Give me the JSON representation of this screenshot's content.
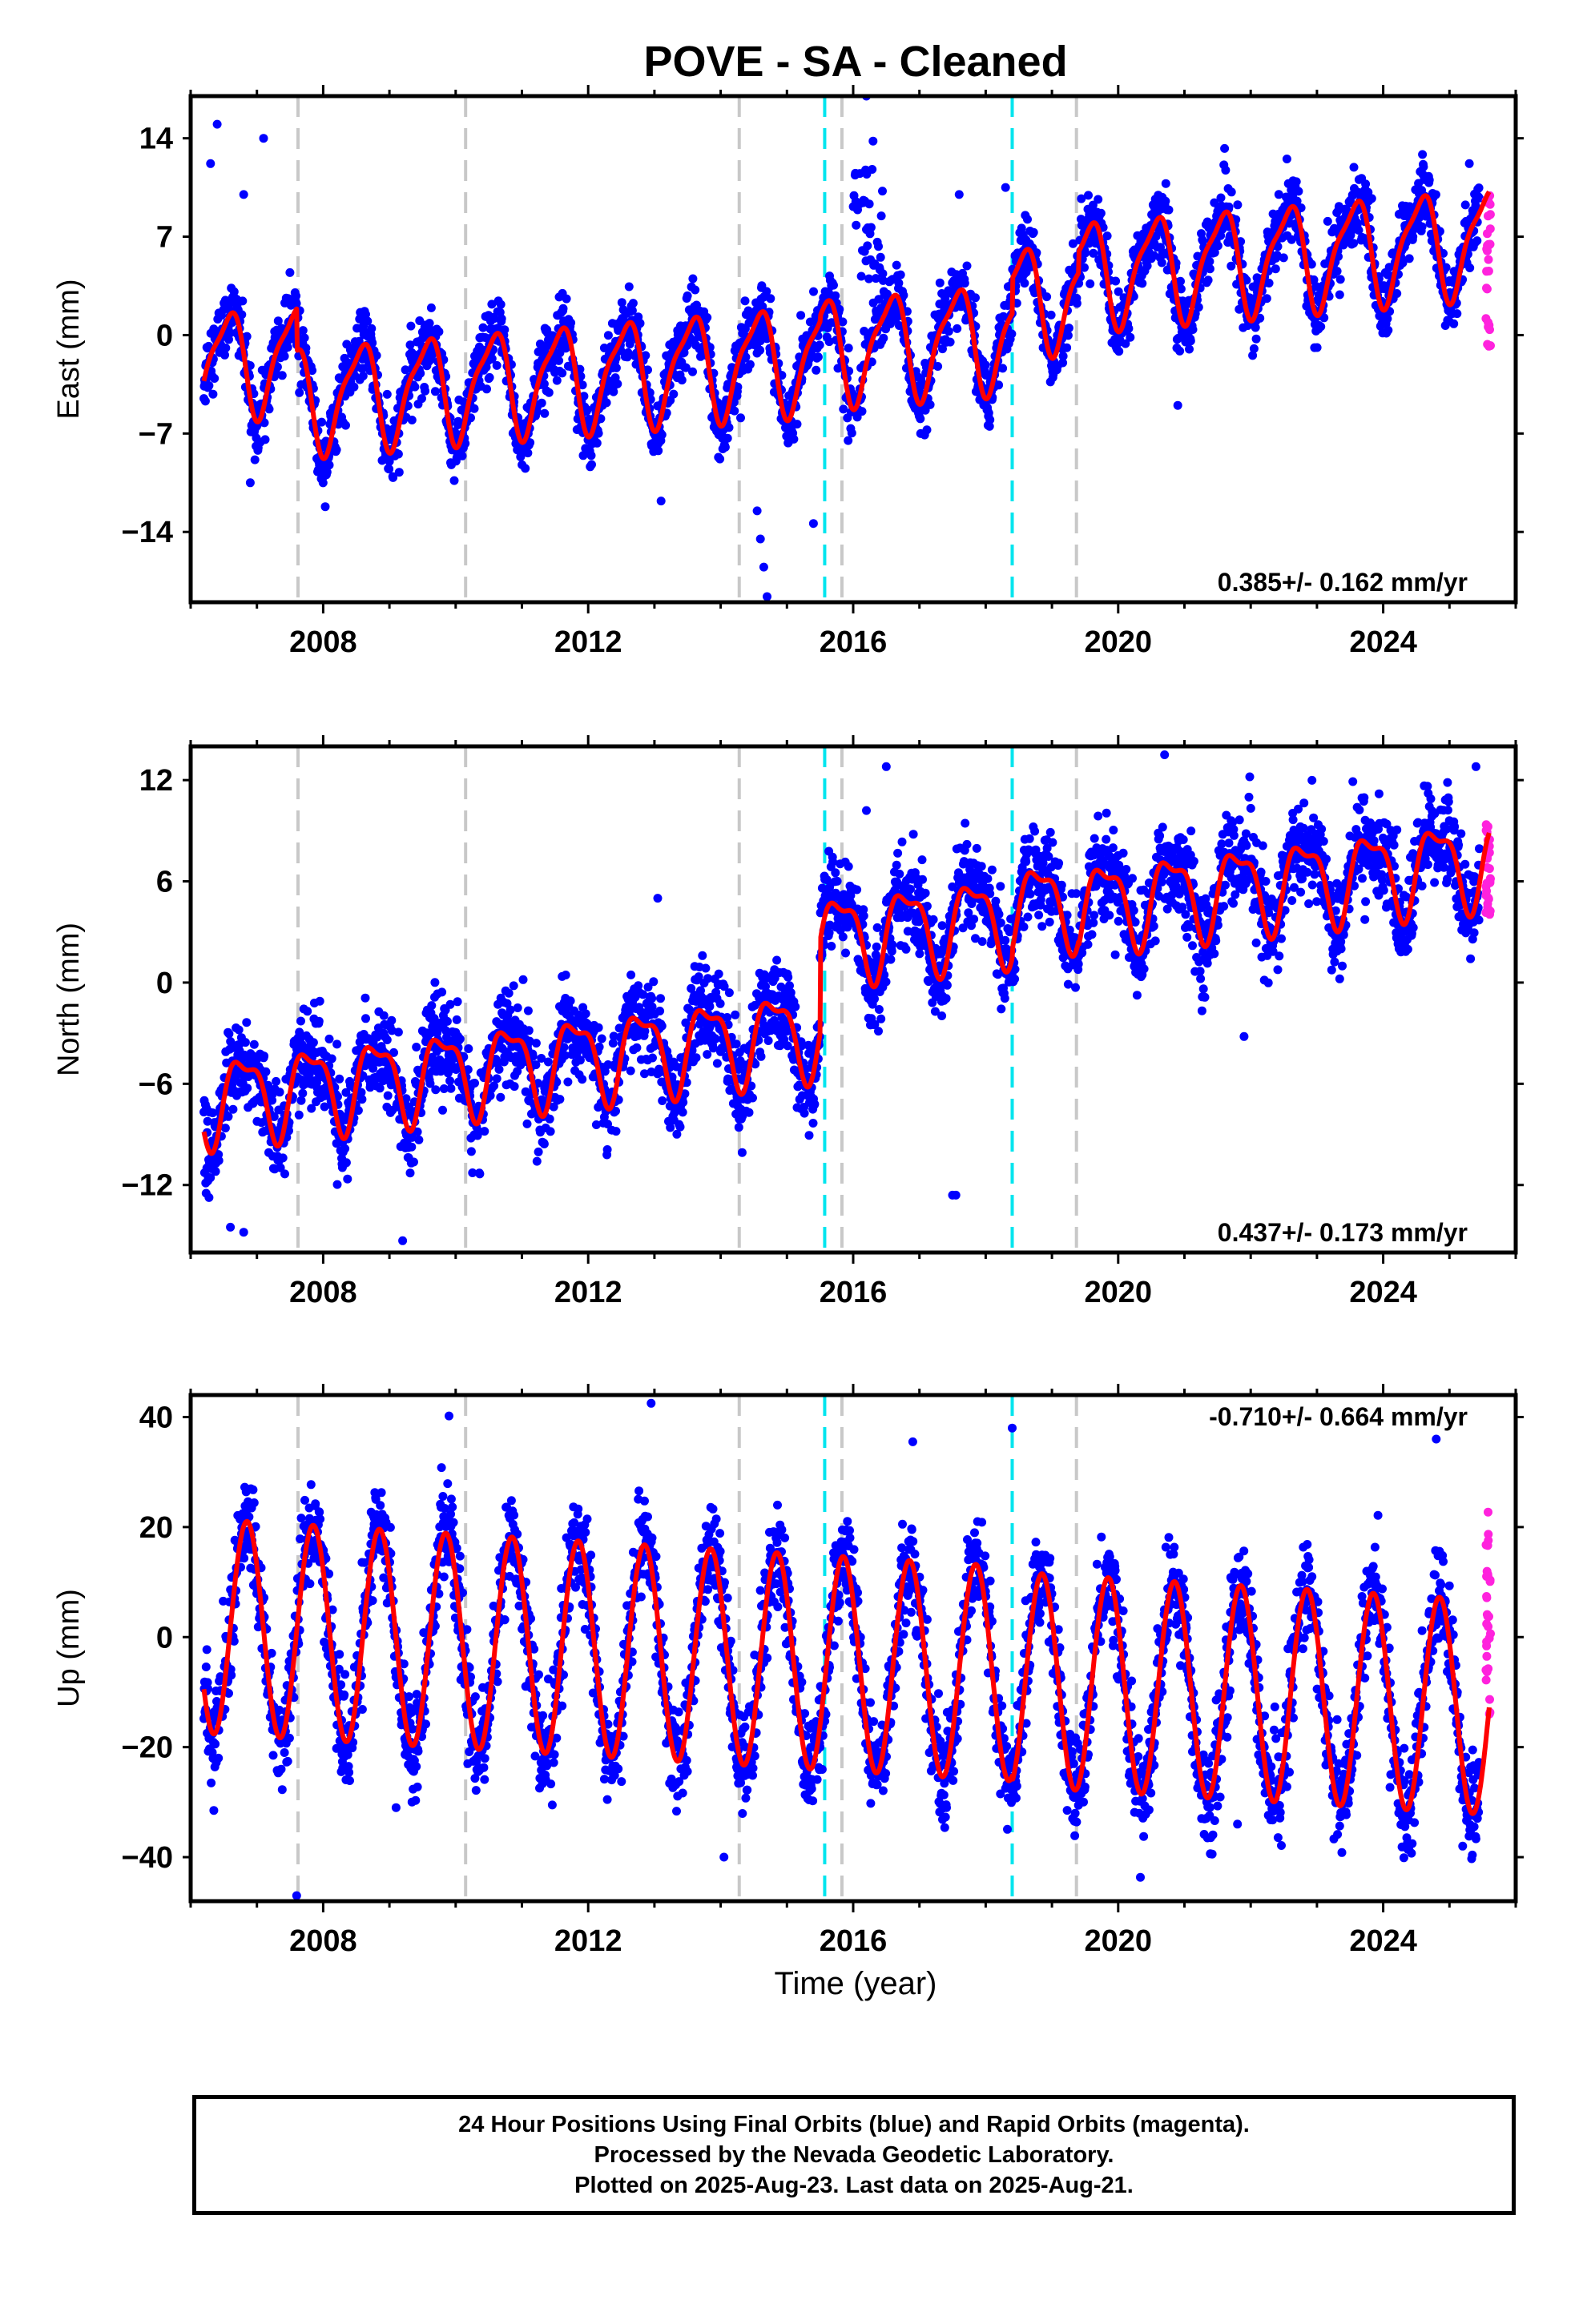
{
  "title": "POVE  - SA - Cleaned",
  "x_axis_label": "Time (year)",
  "footer": {
    "line1": "24 Hour Positions Using Final Orbits (blue) and Rapid Orbits (magenta).",
    "line2": "Processed by the Nevada Geodetic Laboratory.",
    "line3": "Plotted on 2025-Aug-23. Last data on 2025-Aug-21."
  },
  "colors": {
    "final_orbits": "#0000ff",
    "rapid_orbits": "#ff22dd",
    "model_fit": "#ff0000",
    "equipment_change": "#c8c8c8",
    "earthquake": "#00e5ee"
  },
  "chart_data": [
    {
      "type": "scatter",
      "name": "east",
      "ylabel": "East (mm)",
      "xlim": [
        2006.0,
        2026.0
      ],
      "ylim": [
        -19,
        17
      ],
      "xticks": [
        2008,
        2012,
        2016,
        2020,
        2024
      ],
      "yticks": [
        14,
        7,
        0,
        -7,
        -14
      ],
      "rate_annotation": "0.385+/- 0.162 mm/yr",
      "annotation_position": "bottom-right",
      "model": {
        "start": 2006.2,
        "end": 2025.6,
        "offset": -2.1,
        "trend": 0.385,
        "amp_annual": 3.6,
        "phase_annual": 2006.3,
        "amp_semiannual": 1.0,
        "phase_semiannual": 2006.1,
        "steps": [
          {
            "year": 2007.6,
            "size": -3.0
          },
          {
            "year": 2015.5,
            "size": 0.4
          },
          {
            "year": 2018.4,
            "size": 2.5
          },
          {
            "year": 2019.4,
            "size": 1.5
          }
        ]
      },
      "scatter_noise": 1.6,
      "final_end": 2025.45,
      "rapid_orbits_range": [
        -0.8,
        10.0
      ],
      "outliers": [
        [
          2006.4,
          15.0
        ],
        [
          2006.3,
          12.2
        ],
        [
          2006.8,
          10.0
        ],
        [
          2007.1,
          14.0
        ],
        [
          2006.9,
          -10.5
        ],
        [
          2014.55,
          -12.5
        ],
        [
          2014.6,
          -14.5
        ],
        [
          2014.65,
          -16.5
        ],
        [
          2014.7,
          -18.6
        ],
        [
          2015.4,
          -13.4
        ],
        [
          2016.2,
          17.0
        ],
        [
          2016.3,
          13.8
        ],
        [
          2016.1,
          11.5
        ],
        [
          2017.6,
          10.0
        ],
        [
          2018.3,
          10.5
        ],
        [
          2020.9,
          -5.0
        ],
        [
          2025.3,
          12.2
        ],
        [
          2013.1,
          -11.8
        ]
      ],
      "bursts": [
        {
          "start": 2016.0,
          "end": 2016.45,
          "values": [
            4,
            12
          ]
        }
      ]
    },
    {
      "type": "scatter",
      "name": "north",
      "ylabel": "North (mm)",
      "xlim": [
        2006.0,
        2026.0
      ],
      "ylim": [
        -16,
        14
      ],
      "xticks": [
        2008,
        2012,
        2016,
        2020,
        2024
      ],
      "yticks": [
        12,
        6,
        0,
        -6,
        -12
      ],
      "rate_annotation": "0.437+/- 0.173 mm/yr",
      "annotation_position": "bottom-right",
      "model": {
        "start": 2006.2,
        "end": 2025.6,
        "offset": -6.9,
        "trend": 0.437,
        "amp_annual": 2.4,
        "phase_annual": 2006.55,
        "amp_semiannual": 0.9,
        "phase_semiannual": 2006.45,
        "steps": [
          {
            "year": 2015.5,
            "size": 5.5
          },
          {
            "year": 2018.4,
            "size": 0.5
          },
          {
            "year": 2019.4,
            "size": -0.3
          }
        ]
      },
      "scatter_noise": 1.8,
      "final_end": 2025.45,
      "rapid_orbits_range": [
        4.0,
        9.5
      ],
      "outliers": [
        [
          2006.6,
          -14.5
        ],
        [
          2006.8,
          -14.8
        ],
        [
          2009.2,
          -15.3
        ],
        [
          2013.05,
          5.0
        ],
        [
          2017.5,
          -12.6
        ],
        [
          2017.55,
          -12.6
        ],
        [
          2020.7,
          13.5
        ],
        [
          2025.4,
          12.8
        ],
        [
          2016.5,
          12.8
        ],
        [
          2016.2,
          10.2
        ],
        [
          2021.9,
          -3.2
        ]
      ]
    },
    {
      "type": "scatter",
      "name": "up",
      "ylabel": "Up (mm)",
      "xlim": [
        2006.0,
        2026.0
      ],
      "ylim": [
        -48,
        44
      ],
      "xticks": [
        2008,
        2012,
        2016,
        2020,
        2024
      ],
      "yticks": [
        40,
        20,
        0,
        -20,
        -40
      ],
      "rate_annotation": "-0.710+/- 0.664 mm/yr",
      "annotation_position": "top-right",
      "model": {
        "start": 2006.2,
        "end": 2025.6,
        "offset": 2.0,
        "trend": -0.71,
        "amp_annual": 19.5,
        "phase_annual": 2006.6,
        "amp_semiannual": 0,
        "phase_semiannual": 2006.0,
        "steps": [
          {
            "year": 2018.4,
            "size": -1.0
          }
        ]
      },
      "scatter_noise": 6.0,
      "final_end": 2025.45,
      "rapid_orbits_range": [
        -14.0,
        23.0
      ],
      "outliers": [
        [
          2007.6,
          -47.0
        ],
        [
          2006.35,
          -31.5
        ],
        [
          2009.1,
          -31.0
        ],
        [
          2009.9,
          40.2
        ],
        [
          2012.95,
          42.5
        ],
        [
          2014.05,
          -40.0
        ],
        [
          2018.4,
          38.0
        ],
        [
          2021.8,
          -34.0
        ],
        [
          2024.8,
          36.0
        ],
        [
          2025.2,
          -38.0
        ],
        [
          2016.9,
          35.5
        ]
      ]
    }
  ],
  "vertical_markers": {
    "equipment_change": [
      2007.62,
      2010.15,
      2014.28,
      2015.83,
      2019.37
    ],
    "earthquake": [
      2015.57,
      2018.4
    ]
  }
}
